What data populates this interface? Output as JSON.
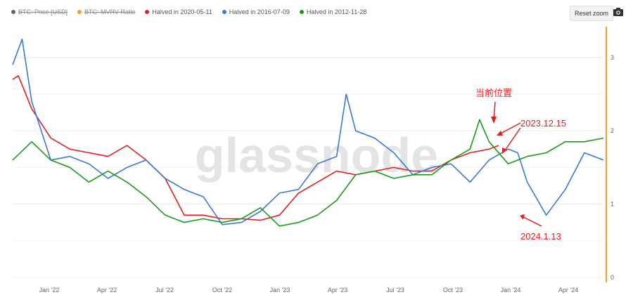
{
  "toolbar": {
    "reset_zoom_label": "Reset zoom"
  },
  "chart_data": {
    "type": "line",
    "legend": [
      {
        "name": "BTC: Price [USD]",
        "color": "#666666",
        "visible": false
      },
      {
        "name": "BTC: MVRV Ratio",
        "color": "#f0a030",
        "visible": false
      },
      {
        "name": "Halved in 2020-05-11",
        "color": "#e02020",
        "visible": true
      },
      {
        "name": "Halved in 2016-07-09",
        "color": "#3a78d8",
        "visible": true
      },
      {
        "name": "Halved in 2012-11-28",
        "color": "#1a9a1a",
        "visible": true
      }
    ],
    "watermark": "glassnode",
    "x_ticks": [
      "Jan '22",
      "Apr '22",
      "Jul '22",
      "Oct '22",
      "Jan '23",
      "Apr '23",
      "Jul '23",
      "Oct '23",
      "Jan '24",
      "Apr '24"
    ],
    "y_ticks": [
      "0",
      "1",
      "2",
      "3"
    ],
    "ylim": [
      0,
      3.4
    ],
    "xlim": [
      0,
      31
    ],
    "legend_position": "top-left",
    "series": [
      {
        "name": "Halved in 2020-05-11",
        "color": "#e02020",
        "x": [
          0,
          0.3,
          1,
          2,
          3,
          4,
          5,
          6,
          7,
          8,
          9,
          10,
          11,
          12,
          13,
          14,
          15,
          16,
          17,
          18,
          19,
          20,
          21,
          22,
          23,
          24,
          25,
          25.5
        ],
        "y": [
          2.7,
          2.75,
          2.3,
          1.9,
          1.75,
          1.7,
          1.65,
          1.8,
          1.6,
          1.35,
          0.85,
          0.85,
          0.8,
          0.8,
          0.78,
          0.85,
          1.15,
          1.3,
          1.45,
          1.4,
          1.45,
          1.5,
          1.45,
          1.45,
          1.6,
          1.7,
          1.75,
          1.8
        ]
      },
      {
        "name": "Halved in 2016-07-09",
        "color": "#3a78d8",
        "x": [
          0,
          0.5,
          1,
          2,
          3,
          4,
          5,
          6,
          7,
          8,
          9,
          10,
          11,
          12,
          13,
          14,
          15,
          16,
          17,
          17.5,
          18,
          19,
          20,
          21,
          22,
          23,
          24,
          25,
          26,
          26.5,
          27,
          28,
          29,
          30,
          31
        ],
        "y": [
          2.9,
          3.25,
          2.4,
          1.6,
          1.65,
          1.55,
          1.35,
          1.5,
          1.6,
          1.35,
          1.2,
          1.1,
          0.72,
          0.75,
          0.9,
          1.15,
          1.2,
          1.55,
          1.65,
          2.5,
          2.0,
          1.9,
          1.7,
          1.4,
          1.5,
          1.55,
          1.3,
          1.6,
          1.75,
          1.7,
          1.3,
          0.85,
          1.2,
          1.7,
          1.6
        ]
      },
      {
        "name": "Halved in 2012-11-28",
        "color": "#1a9a1a",
        "x": [
          0,
          1,
          2,
          3,
          4,
          5,
          6,
          7,
          8,
          9,
          10,
          11,
          12,
          13,
          14,
          15,
          16,
          17,
          18,
          19,
          20,
          21,
          22,
          23,
          24,
          24.5,
          25,
          26,
          27,
          28,
          29,
          30,
          31
        ],
        "y": [
          1.6,
          1.85,
          1.6,
          1.5,
          1.3,
          1.45,
          1.3,
          1.1,
          0.85,
          0.75,
          0.8,
          0.75,
          0.8,
          0.95,
          0.7,
          0.75,
          0.85,
          1.05,
          1.4,
          1.45,
          1.35,
          1.4,
          1.4,
          1.6,
          1.75,
          2.15,
          1.85,
          1.55,
          1.65,
          1.7,
          1.85,
          1.85,
          1.9
        ]
      }
    ],
    "annotations": [
      {
        "text": "当前位置"
      },
      {
        "text": "2023.12.15"
      },
      {
        "text": "2024.1.13"
      }
    ]
  }
}
